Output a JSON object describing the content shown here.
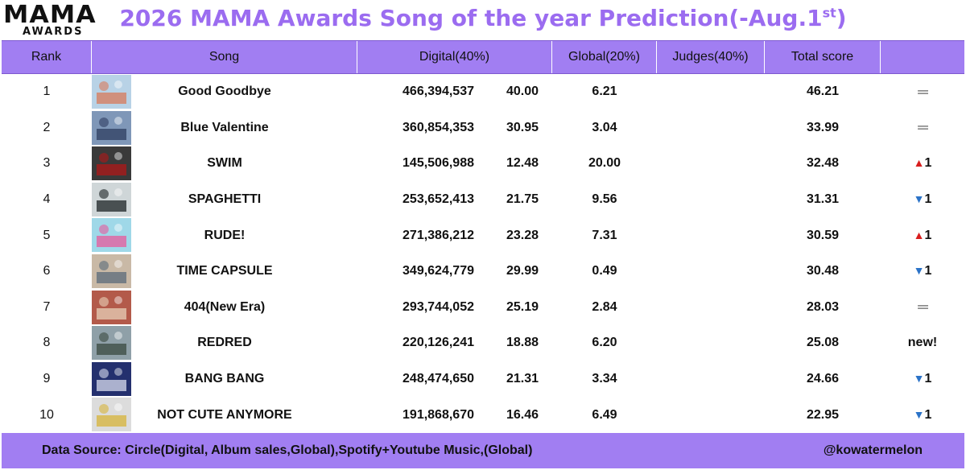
{
  "logo": {
    "top": "MAMA",
    "bottom": "AWARDS"
  },
  "title": {
    "main": "2026 MAMA Awards Song of the year Prediction(-Aug.1",
    "sup": "st",
    "close": ")"
  },
  "colors": {
    "accent": "#a17ef2",
    "title": "#9b6cf0",
    "up": "#d81e1e",
    "down": "#2b73c8"
  },
  "headers": {
    "rank": "Rank",
    "song": "Song",
    "digital": "Digital(40%)",
    "global": "Global(20%)",
    "judges": "Judges(40%)",
    "total": "Total score",
    "change": ""
  },
  "rows": [
    {
      "rank": "1",
      "song": "Good Goodbye",
      "digital": "466,394,537",
      "digital_score": "40.00",
      "global": "6.21",
      "judges": "",
      "total": "46.21",
      "change_type": "same",
      "change_symbol": "═",
      "change_value": ""
    },
    {
      "rank": "2",
      "song": "Blue Valentine",
      "digital": "360,854,353",
      "digital_score": "30.95",
      "global": "3.04",
      "judges": "",
      "total": "33.99",
      "change_type": "same",
      "change_symbol": "═",
      "change_value": ""
    },
    {
      "rank": "3",
      "song": "SWIM",
      "digital": "145,506,988",
      "digital_score": "12.48",
      "global": "20.00",
      "judges": "",
      "total": "32.48",
      "change_type": "up",
      "change_symbol": "▲",
      "change_value": "1"
    },
    {
      "rank": "4",
      "song": "SPAGHETTI",
      "digital": "253,652,413",
      "digital_score": "21.75",
      "global": "9.56",
      "judges": "",
      "total": "31.31",
      "change_type": "down",
      "change_symbol": "▼",
      "change_value": "1"
    },
    {
      "rank": "5",
      "song": "RUDE!",
      "digital": "271,386,212",
      "digital_score": "23.28",
      "global": "7.31",
      "judges": "",
      "total": "30.59",
      "change_type": "up",
      "change_symbol": "▲",
      "change_value": "1"
    },
    {
      "rank": "6",
      "song": "TIME CAPSULE",
      "digital": "349,624,779",
      "digital_score": "29.99",
      "global": "0.49",
      "judges": "",
      "total": "30.48",
      "change_type": "down",
      "change_symbol": "▼",
      "change_value": "1"
    },
    {
      "rank": "7",
      "song": "404(New Era)",
      "digital": "293,744,052",
      "digital_score": "25.19",
      "global": "2.84",
      "judges": "",
      "total": "28.03",
      "change_type": "same",
      "change_symbol": "═",
      "change_value": ""
    },
    {
      "rank": "8",
      "song": "REDRED",
      "digital": "220,126,241",
      "digital_score": "18.88",
      "global": "6.20",
      "judges": "",
      "total": "25.08",
      "change_type": "new",
      "change_symbol": "",
      "change_value": "new!"
    },
    {
      "rank": "9",
      "song": "BANG BANG",
      "digital": "248,474,650",
      "digital_score": "21.31",
      "global": "3.34",
      "judges": "",
      "total": "24.66",
      "change_type": "down",
      "change_symbol": "▼",
      "change_value": "1"
    },
    {
      "rank": "10",
      "song": "NOT CUTE ANYMORE",
      "digital": "191,868,670",
      "digital_score": "16.46",
      "global": "6.49",
      "judges": "",
      "total": "22.95",
      "change_type": "down",
      "change_symbol": "▼",
      "change_value": "1"
    }
  ],
  "thumbs": [
    {
      "icon": "album-cover-beach",
      "bg": "#b8d2e6",
      "fg": "#d87a5a"
    },
    {
      "icon": "album-cover-blue",
      "bg": "#7f97b8",
      "fg": "#2e3e60"
    },
    {
      "icon": "album-cover-swim",
      "bg": "#3a3a3a",
      "fg": "#b01818"
    },
    {
      "icon": "album-cover-spaghetti",
      "bg": "#cfd6d8",
      "fg": "#1c2326"
    },
    {
      "icon": "album-cover-rude",
      "bg": "#9fd8e8",
      "fg": "#e85a9c"
    },
    {
      "icon": "album-cover-time-capsule",
      "bg": "#c9b9a6",
      "fg": "#5a6b79"
    },
    {
      "icon": "album-cover-404",
      "bg": "#b35a4a",
      "fg": "#e7d0b8"
    },
    {
      "icon": "album-cover-redred",
      "bg": "#8fa0a8",
      "fg": "#3a4a40"
    },
    {
      "icon": "album-cover-bang-bang",
      "bg": "#24306e",
      "fg": "#d8dcef"
    },
    {
      "icon": "album-cover-not-cute",
      "bg": "#dcdcdc",
      "fg": "#d7b43a"
    }
  ],
  "footer": {
    "source": "Data Source: Circle(Digital, Album sales,Global),Spotify+Youtube Music,(Global)",
    "handle": "@kowatermelon"
  }
}
